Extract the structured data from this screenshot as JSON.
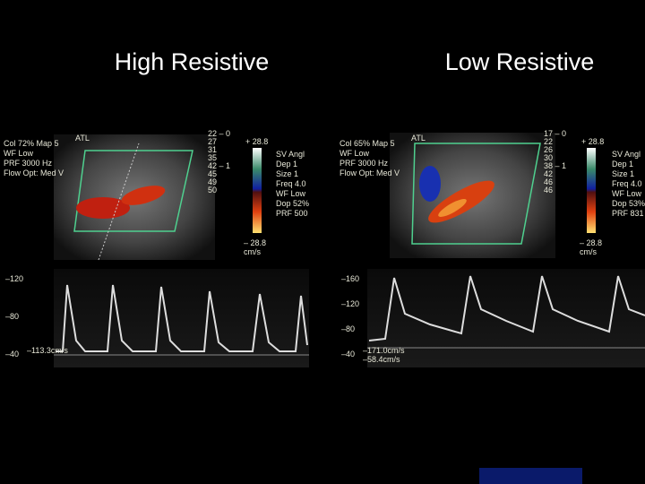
{
  "titles": [
    "High Resistive",
    "Low Resistive"
  ],
  "panels": [
    {
      "color_info": [
        "Col 72%  Map 5",
        "WF Low",
        "PRF 3000  Hz",
        "Flow Opt: Med V"
      ],
      "probe": "ATL",
      "depth_marks": [
        "22 – 0",
        "27",
        "31",
        "35",
        "42 – 1",
        "45",
        "49",
        "50"
      ],
      "scale_top": "+ 28.8",
      "scale_bottom": "– 28.8",
      "scale_unit": "cm/s",
      "sv_info": [
        "SV Angl",
        "Dep 1",
        "Size 1",
        "Freq 4.0",
        "WF Low",
        "Dop 52%",
        "PRF 500"
      ],
      "doppler_scale": [
        "–120",
        "–80",
        "–40"
      ],
      "doppler_readouts": [
        "–113.3cm/s"
      ]
    },
    {
      "color_info": [
        "Col 65%  Map 5",
        "WF Low",
        "PRF 3000  Hz",
        "Flow Opt: Med V"
      ],
      "probe": "ATL",
      "depth_marks": [
        "17 – 0",
        "22",
        "26",
        "30",
        "38 – 1",
        "42",
        "46",
        "46"
      ],
      "scale_top": "+ 28.8",
      "scale_bottom": "– 28.8",
      "scale_unit": "cm/s",
      "sv_info": [
        "SV Angl",
        "Dep 1",
        "Size 1",
        "Freq 4.0",
        "WF Low",
        "Dop 53%",
        "PRF 831"
      ],
      "doppler_scale": [
        "–160",
        "–120",
        "–80",
        "–40"
      ],
      "doppler_readouts": [
        "–171.0cm/s",
        "–58.4cm/s"
      ]
    }
  ]
}
